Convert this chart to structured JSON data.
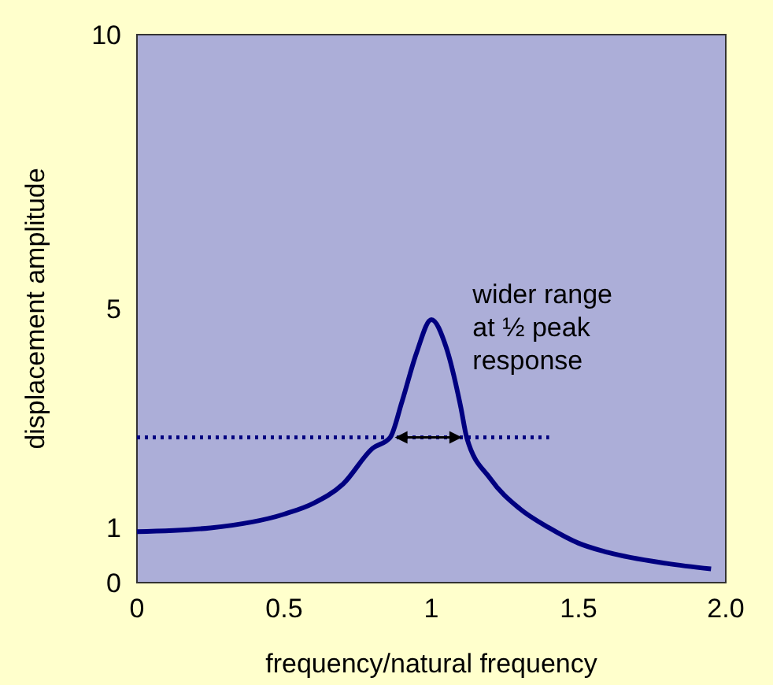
{
  "chart_data": {
    "type": "line",
    "xlabel": "frequency/natural frequency",
    "ylabel": "displacement amplitude",
    "xlim": [
      0,
      2
    ],
    "ylim": [
      0,
      10
    ],
    "xticks": [
      0,
      0.5,
      1,
      1.5,
      {
        "value": 2,
        "label": "2.0"
      }
    ],
    "yticks": [
      0,
      1,
      5,
      10
    ],
    "grid": false,
    "annotations": [
      "wider range\nat ½ peak\nresponse"
    ],
    "series": [
      {
        "color": "#000080",
        "line_style": "solid",
        "x": [
          0,
          0.25,
          0.5,
          0.6,
          0.7,
          0.8,
          0.86,
          0.9,
          0.95,
          1.0,
          1.05,
          1.1,
          1.12,
          1.2,
          1.3,
          1.4,
          1.5,
          1.6,
          1.8,
          1.95
        ],
        "values": [
          0.93,
          1.0,
          1.25,
          1.45,
          1.8,
          2.45,
          2.65,
          3.3,
          4.2,
          4.8,
          4.3,
          3.2,
          2.65,
          1.9,
          1.35,
          1.0,
          0.72,
          0.55,
          0.35,
          0.25
        ]
      },
      {
        "color": "#000080",
        "line_style": "dotted",
        "x": [
          0,
          1.4
        ],
        "values": [
          2.65,
          2.65
        ]
      }
    ]
  }
}
